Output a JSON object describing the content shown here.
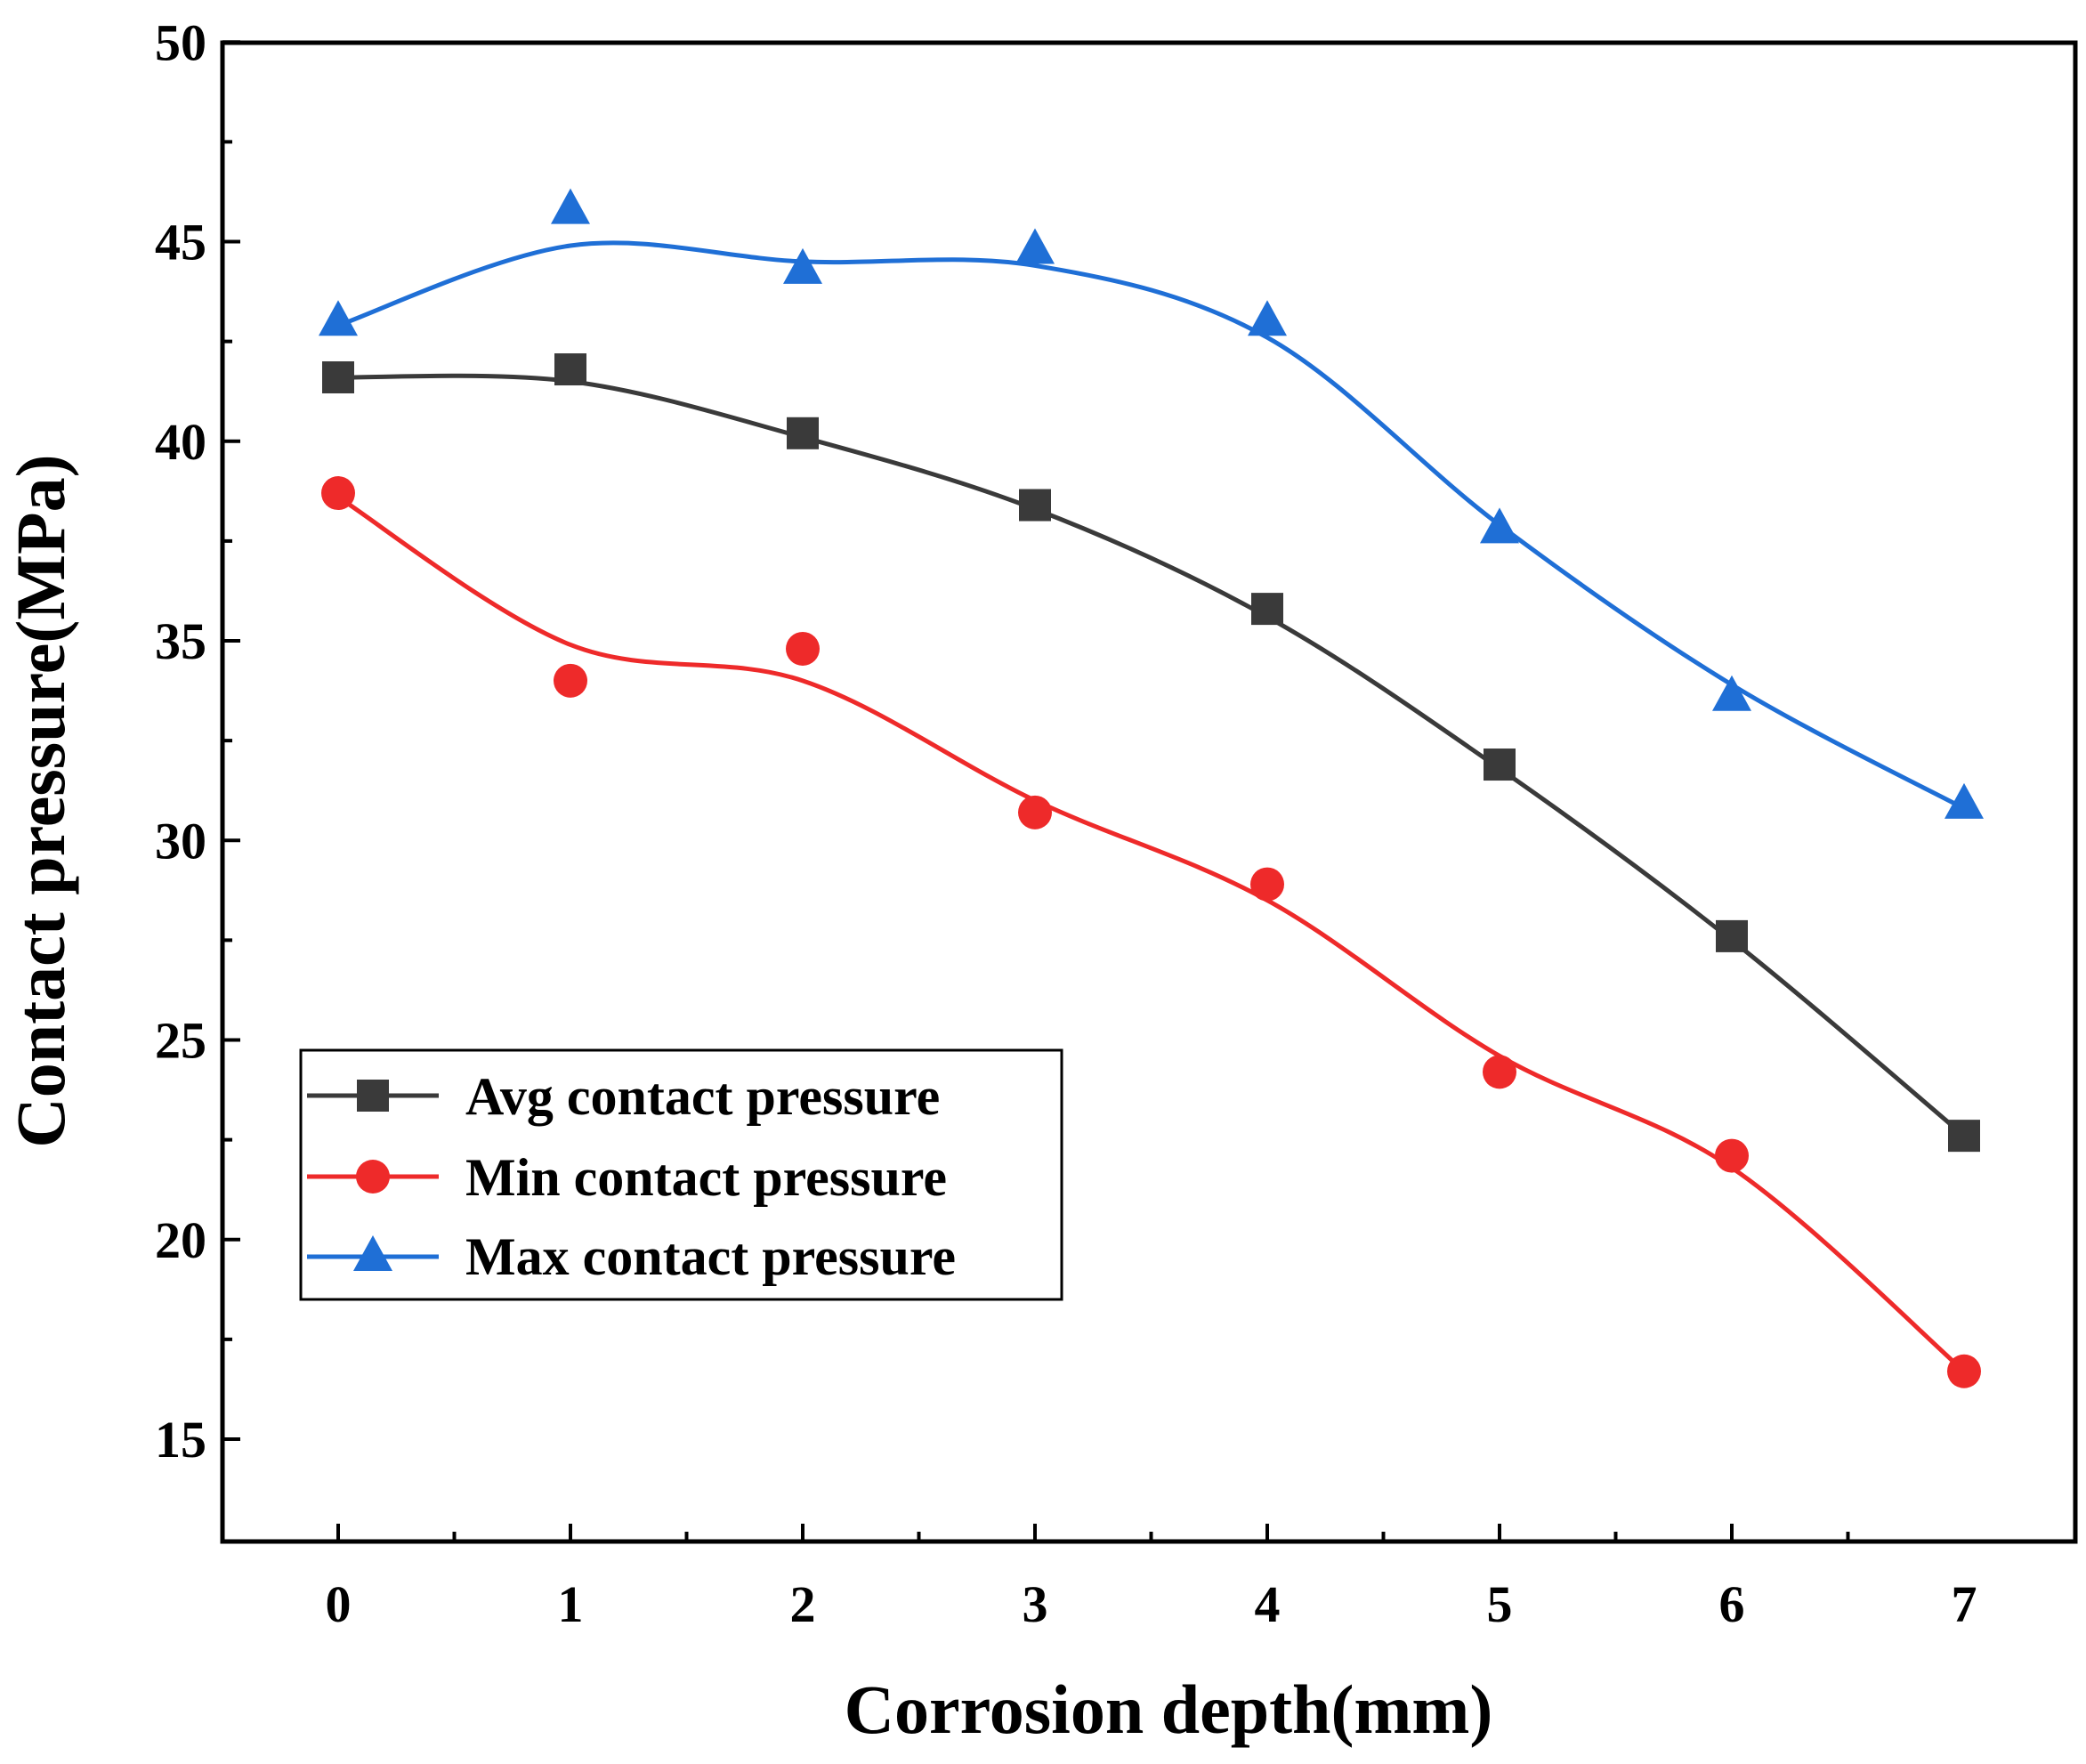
{
  "chart_data": {
    "type": "line",
    "title": "",
    "xlabel": "Corrosion depth(mm)",
    "ylabel": "Contact pressure(MPa)",
    "xlim": [
      -0.5,
      7.5
    ],
    "ylim": [
      12.5,
      50
    ],
    "x": [
      0,
      1,
      2,
      3,
      4,
      5,
      6,
      7
    ],
    "x_ticks": [
      "0",
      "1",
      "2",
      "3",
      "4",
      "5",
      "6",
      "7"
    ],
    "y_ticks": [
      "15",
      "20",
      "25",
      "30",
      "35",
      "40",
      "45",
      "50"
    ],
    "legend_position": "lower-left",
    "grid": false,
    "series": [
      {
        "name": "Avg contact pressure",
        "color": "#3a3a3a",
        "marker": "square",
        "values": [
          41.6,
          41.8,
          40.2,
          38.4,
          35.8,
          31.9,
          27.6,
          22.6
        ],
        "fit_curve": [
          41.6,
          41.5,
          40.1,
          38.3,
          35.6,
          31.8,
          27.5,
          22.6
        ]
      },
      {
        "name": "Min contact pressure",
        "color": "#ee2a2a",
        "marker": "circle",
        "values": [
          38.7,
          34.0,
          34.8,
          30.7,
          28.9,
          24.2,
          22.1,
          16.7
        ],
        "fit_curve": [
          38.6,
          34.9,
          34.0,
          31.0,
          28.5,
          24.6,
          21.8,
          16.7
        ]
      },
      {
        "name": "Max contact pressure",
        "color": "#1f6fd6",
        "marker": "triangle",
        "values": [
          43.0,
          45.8,
          44.3,
          44.8,
          43.0,
          37.8,
          33.6,
          30.9
        ],
        "fit_curve": [
          42.9,
          44.9,
          44.5,
          44.4,
          42.6,
          37.9,
          33.9,
          30.8
        ]
      }
    ]
  }
}
